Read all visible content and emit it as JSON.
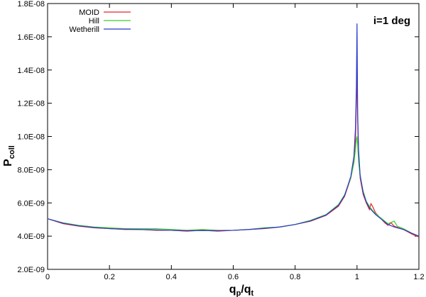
{
  "chart_data": {
    "type": "line",
    "annotation": "i=1 deg",
    "xlabel": {
      "main": "q",
      "sub1": "p",
      "slash": "/q",
      "sub2": "t"
    },
    "ylabel": {
      "main": "P",
      "sub": "coll"
    },
    "xlim": [
      0,
      1.2
    ],
    "ylim": [
      2e-09,
      1.8e-08
    ],
    "x_ticks": [
      0,
      0.2,
      0.4,
      0.6,
      0.8,
      1,
      1.2
    ],
    "x_tick_labels": [
      "0",
      "0.2",
      "0.4",
      "0.6",
      "0.8",
      "1",
      "1.2"
    ],
    "y_ticks": [
      2e-09,
      4e-09,
      6e-09,
      8e-09,
      1e-08,
      1.2e-08,
      1.4e-08,
      1.6e-08,
      1.8e-08
    ],
    "y_tick_labels": [
      "2.0E-09",
      "4.0E-09",
      "6.0E-09",
      "8.0E-09",
      "1.0E-08",
      "1.2E-08",
      "1.4E-08",
      "1.6E-08",
      "1.8E-08"
    ],
    "legend_position": "top-left",
    "series": [
      {
        "name": "MOID",
        "color": "#e8242a",
        "points": [
          [
            0,
            5.05e-09
          ],
          [
            0.05,
            4.75e-09
          ],
          [
            0.1,
            4.6e-09
          ],
          [
            0.15,
            4.5e-09
          ],
          [
            0.2,
            4.45e-09
          ],
          [
            0.25,
            4.4e-09
          ],
          [
            0.3,
            4.4e-09
          ],
          [
            0.35,
            4.35e-09
          ],
          [
            0.4,
            4.35e-09
          ],
          [
            0.45,
            4.3e-09
          ],
          [
            0.5,
            4.35e-09
          ],
          [
            0.55,
            4.3e-09
          ],
          [
            0.6,
            4.35e-09
          ],
          [
            0.65,
            4.4e-09
          ],
          [
            0.7,
            4.45e-09
          ],
          [
            0.75,
            4.55e-09
          ],
          [
            0.8,
            4.7e-09
          ],
          [
            0.85,
            4.9e-09
          ],
          [
            0.9,
            5.25e-09
          ],
          [
            0.94,
            5.8e-09
          ],
          [
            0.96,
            6.4e-09
          ],
          [
            0.98,
            7.5e-09
          ],
          [
            0.99,
            8.6e-09
          ],
          [
            0.995,
            9.8e-09
          ],
          [
            0.998,
            1.2e-08
          ],
          [
            1.0,
            1.45e-08
          ],
          [
            1.002,
            1.1e-08
          ],
          [
            1.005,
            9e-09
          ],
          [
            1.01,
            7.5e-09
          ],
          [
            1.02,
            6.5e-09
          ],
          [
            1.03,
            6e-09
          ],
          [
            1.04,
            5.6e-09
          ],
          [
            1.045,
            5.95e-09
          ],
          [
            1.05,
            5.8e-09
          ],
          [
            1.06,
            5.4e-09
          ],
          [
            1.07,
            5.2e-09
          ],
          [
            1.08,
            5e-09
          ],
          [
            1.09,
            4.8e-09
          ],
          [
            1.1,
            4.65e-09
          ],
          [
            1.11,
            4.8e-09
          ],
          [
            1.12,
            4.6e-09
          ],
          [
            1.15,
            4.4e-09
          ],
          [
            1.18,
            4.1e-09
          ],
          [
            1.2,
            3.95e-09
          ]
        ]
      },
      {
        "name": "Hill",
        "color": "#3fcf2e",
        "points": [
          [
            0,
            5.05e-09
          ],
          [
            0.05,
            4.8e-09
          ],
          [
            0.1,
            4.65e-09
          ],
          [
            0.15,
            4.55e-09
          ],
          [
            0.2,
            4.5e-09
          ],
          [
            0.25,
            4.45e-09
          ],
          [
            0.3,
            4.45e-09
          ],
          [
            0.35,
            4.45e-09
          ],
          [
            0.4,
            4.4e-09
          ],
          [
            0.45,
            4.35e-09
          ],
          [
            0.5,
            4.4e-09
          ],
          [
            0.55,
            4.35e-09
          ],
          [
            0.6,
            4.35e-09
          ],
          [
            0.65,
            4.4e-09
          ],
          [
            0.7,
            4.5e-09
          ],
          [
            0.75,
            4.55e-09
          ],
          [
            0.8,
            4.7e-09
          ],
          [
            0.85,
            4.95e-09
          ],
          [
            0.9,
            5.3e-09
          ],
          [
            0.94,
            5.9e-09
          ],
          [
            0.96,
            6.5e-09
          ],
          [
            0.98,
            7.5e-09
          ],
          [
            0.99,
            8.4e-09
          ],
          [
            0.995,
            9.2e-09
          ],
          [
            0.998,
            9.8e-09
          ],
          [
            1.0,
            1e-08
          ],
          [
            1.002,
            9.5e-09
          ],
          [
            1.005,
            8.5e-09
          ],
          [
            1.01,
            7.6e-09
          ],
          [
            1.02,
            6.7e-09
          ],
          [
            1.03,
            6.1e-09
          ],
          [
            1.04,
            5.8e-09
          ],
          [
            1.05,
            5.55e-09
          ],
          [
            1.06,
            5.35e-09
          ],
          [
            1.07,
            5.2e-09
          ],
          [
            1.08,
            5.05e-09
          ],
          [
            1.09,
            4.9e-09
          ],
          [
            1.1,
            4.75e-09
          ],
          [
            1.12,
            4.9e-09
          ],
          [
            1.13,
            4.6e-09
          ],
          [
            1.15,
            4.45e-09
          ],
          [
            1.18,
            4.15e-09
          ],
          [
            1.2,
            4e-09
          ]
        ]
      },
      {
        "name": "Wetherill",
        "color": "#2a3bd0",
        "points": [
          [
            0,
            5.05e-09
          ],
          [
            0.05,
            4.78e-09
          ],
          [
            0.1,
            4.62e-09
          ],
          [
            0.15,
            4.52e-09
          ],
          [
            0.2,
            4.45e-09
          ],
          [
            0.25,
            4.42e-09
          ],
          [
            0.3,
            4.4e-09
          ],
          [
            0.35,
            4.38e-09
          ],
          [
            0.4,
            4.35e-09
          ],
          [
            0.45,
            4.33e-09
          ],
          [
            0.5,
            4.33e-09
          ],
          [
            0.55,
            4.33e-09
          ],
          [
            0.6,
            4.35e-09
          ],
          [
            0.65,
            4.4e-09
          ],
          [
            0.7,
            4.47e-09
          ],
          [
            0.75,
            4.55e-09
          ],
          [
            0.8,
            4.7e-09
          ],
          [
            0.85,
            4.92e-09
          ],
          [
            0.9,
            5.27e-09
          ],
          [
            0.94,
            5.85e-09
          ],
          [
            0.96,
            6.45e-09
          ],
          [
            0.98,
            7.6e-09
          ],
          [
            0.99,
            8.8e-09
          ],
          [
            0.995,
            1.05e-08
          ],
          [
            0.998,
            1.3e-08
          ],
          [
            1.0,
            1.68e-08
          ],
          [
            1.002,
            1.15e-08
          ],
          [
            1.005,
            9.2e-09
          ],
          [
            1.01,
            7.7e-09
          ],
          [
            1.02,
            6.6e-09
          ],
          [
            1.03,
            6.05e-09
          ],
          [
            1.04,
            5.7e-09
          ],
          [
            1.05,
            5.5e-09
          ],
          [
            1.06,
            5.3e-09
          ],
          [
            1.07,
            5.15e-09
          ],
          [
            1.08,
            5e-09
          ],
          [
            1.09,
            4.85e-09
          ],
          [
            1.1,
            4.7e-09
          ],
          [
            1.12,
            4.55e-09
          ],
          [
            1.15,
            4.4e-09
          ],
          [
            1.18,
            4.15e-09
          ],
          [
            1.2,
            4e-09
          ]
        ]
      }
    ]
  }
}
